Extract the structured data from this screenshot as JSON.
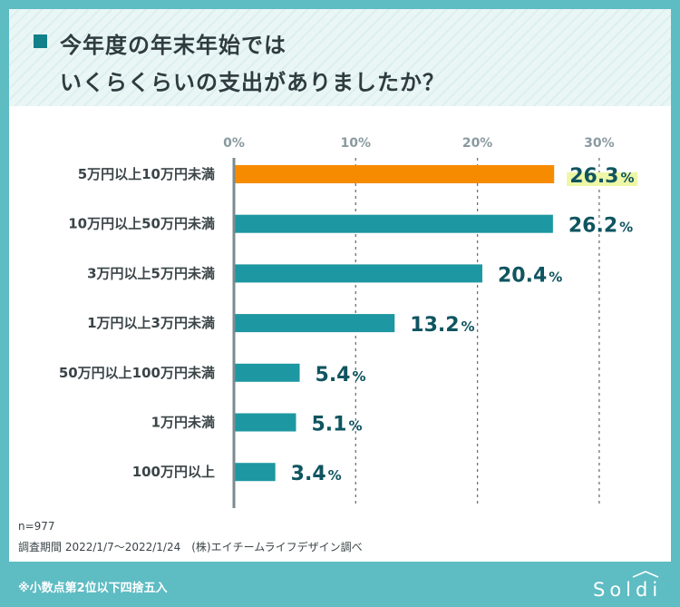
{
  "title": {
    "line1": "今年度の年末年始では",
    "line2": "いくらくらいの支出がありましたか？"
  },
  "chart_data": {
    "type": "bar",
    "orientation": "horizontal",
    "categories": [
      "5万円以上10万円未満",
      "10万円以上50万円未満",
      "3万円以上5万円未満",
      "1万円以上3万円未満",
      "50万円以上100万円未満",
      "1万円未満",
      "100万円以上"
    ],
    "values": [
      26.3,
      26.2,
      20.4,
      13.2,
      5.4,
      5.1,
      3.4
    ],
    "value_labels": [
      "26.3",
      "26.2",
      "20.4",
      "13.2",
      "5.4",
      "5.1",
      "3.4"
    ],
    "unit": "%",
    "xticks": [
      "0%",
      "10%",
      "20%",
      "30%"
    ],
    "xtick_values": [
      0,
      10,
      20,
      30
    ],
    "xlim": [
      0,
      30
    ],
    "gridlines": "dotted",
    "highlight_index": 0,
    "colors": {
      "highlight": "#f78b00",
      "bar": "#1d97a1",
      "label_marker": "#eef7a6",
      "value_text": "#0f5560",
      "axis": "#8a9aa0"
    }
  },
  "notes": {
    "n": "n=977",
    "survey": "調査期間 2022/1/7〜2022/1/24　(株)エイチームライフデザイン調べ"
  },
  "footer": {
    "note": "※小数点第2位以下四捨五入",
    "logo": "Soldi"
  }
}
